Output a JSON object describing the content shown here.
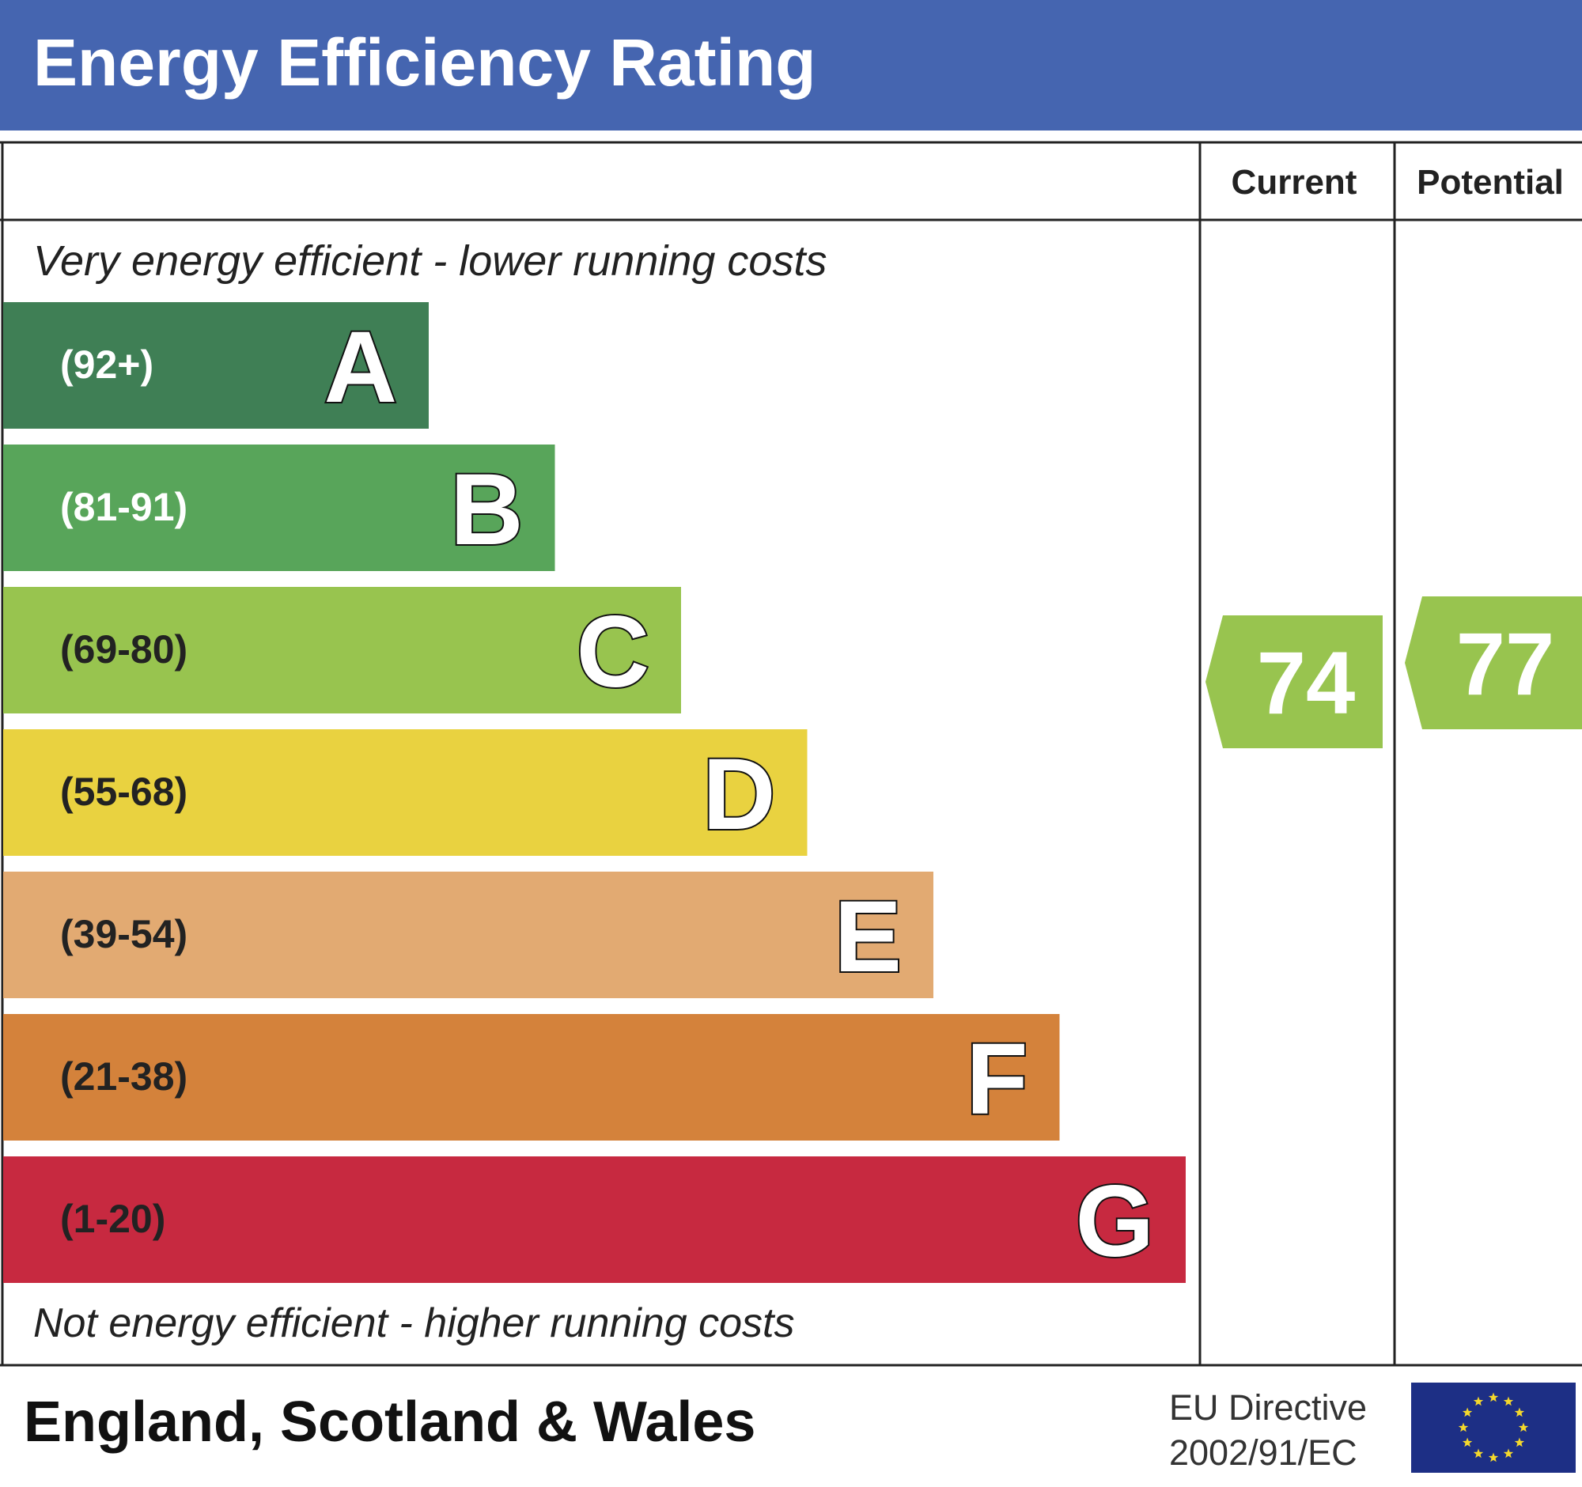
{
  "header": {
    "title": "Energy Efficiency Rating"
  },
  "columns": {
    "current": "Current",
    "potential": "Potential"
  },
  "captions": {
    "top": "Very energy efficient - lower running costs",
    "bottom": "Not energy efficient - higher running costs"
  },
  "footer": {
    "region": "England, Scotland & Wales",
    "directive_line1": "EU Directive",
    "directive_line2": "2002/91/EC"
  },
  "colors": {
    "header_bg": "#4565b0",
    "A": "#3f7f55",
    "B": "#58a55a",
    "C": "#98c44f",
    "D": "#e9d240",
    "E": "#e2aa72",
    "F": "#d4823b",
    "G": "#c72940",
    "eu_flag": "#1d2f85",
    "eu_stars": "#f4d82c"
  },
  "chart_data": {
    "type": "bar",
    "title": "Energy Efficiency Rating",
    "categories": [
      "A",
      "B",
      "C",
      "D",
      "E",
      "F",
      "G"
    ],
    "ranges": [
      "(92+)",
      "(81-91)",
      "(69-80)",
      "(55-68)",
      "(39-54)",
      "(21-38)",
      "(1-20)"
    ],
    "bands": [
      {
        "letter": "A",
        "range": "(92+)",
        "min": 92,
        "max": 100
      },
      {
        "letter": "B",
        "range": "(81-91)",
        "min": 81,
        "max": 91
      },
      {
        "letter": "C",
        "range": "(69-80)",
        "min": 69,
        "max": 80
      },
      {
        "letter": "D",
        "range": "(55-68)",
        "min": 55,
        "max": 68
      },
      {
        "letter": "E",
        "range": "(39-54)",
        "min": 39,
        "max": 54
      },
      {
        "letter": "F",
        "range": "(21-38)",
        "min": 21,
        "max": 38
      },
      {
        "letter": "G",
        "range": "(1-20)",
        "min": 1,
        "max": 20
      }
    ],
    "current": 74,
    "potential": 77,
    "current_band": "C",
    "potential_band": "C"
  }
}
